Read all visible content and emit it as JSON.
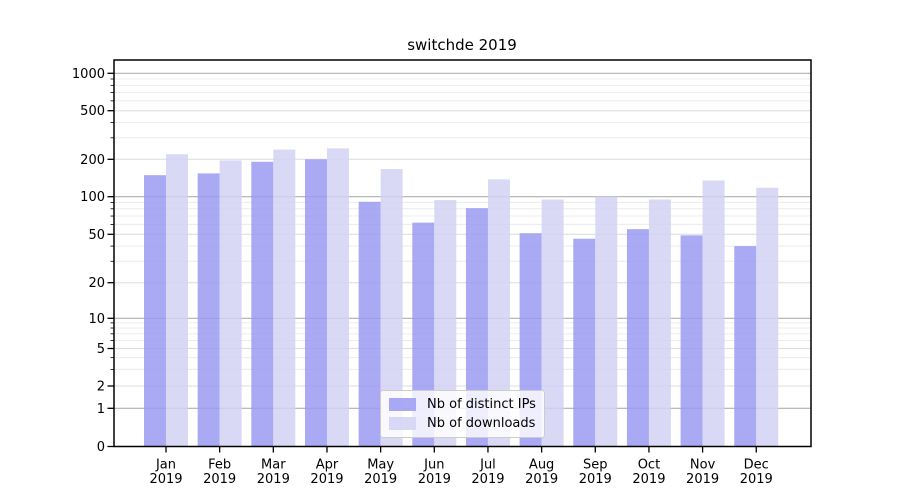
{
  "chart_data": {
    "type": "bar",
    "title": "switchde 2019",
    "yscale": "symlog",
    "ylim": [
      0,
      1300
    ],
    "grid": true,
    "legend_position": "lower center",
    "yticks": [
      0,
      1,
      2,
      5,
      10,
      20,
      50,
      100,
      200,
      500,
      1000
    ],
    "categories": [
      {
        "month": "Jan",
        "year": "2019"
      },
      {
        "month": "Feb",
        "year": "2019"
      },
      {
        "month": "Mar",
        "year": "2019"
      },
      {
        "month": "Apr",
        "year": "2019"
      },
      {
        "month": "May",
        "year": "2019"
      },
      {
        "month": "Jun",
        "year": "2019"
      },
      {
        "month": "Jul",
        "year": "2019"
      },
      {
        "month": "Aug",
        "year": "2019"
      },
      {
        "month": "Sep",
        "year": "2019"
      },
      {
        "month": "Oct",
        "year": "2019"
      },
      {
        "month": "Nov",
        "year": "2019"
      },
      {
        "month": "Dec",
        "year": "2019"
      }
    ],
    "series": [
      {
        "name": "Nb of distinct IPs",
        "color": "#9a9af2",
        "values": [
          149,
          154,
          191,
          200,
          91,
          62,
          81,
          51,
          46,
          55,
          49,
          40
        ]
      },
      {
        "name": "Nb of downloads",
        "color": "#d2d2f5",
        "values": [
          220,
          196,
          240,
          246,
          167,
          94,
          138,
          95,
          100,
          95,
          135,
          118
        ]
      }
    ],
    "colors": {
      "grid_major": "#b0b0b0",
      "grid_mid": "#dcdcdc",
      "grid_minor": "#ececec",
      "axis": "#000000",
      "background": "#ffffff"
    }
  }
}
